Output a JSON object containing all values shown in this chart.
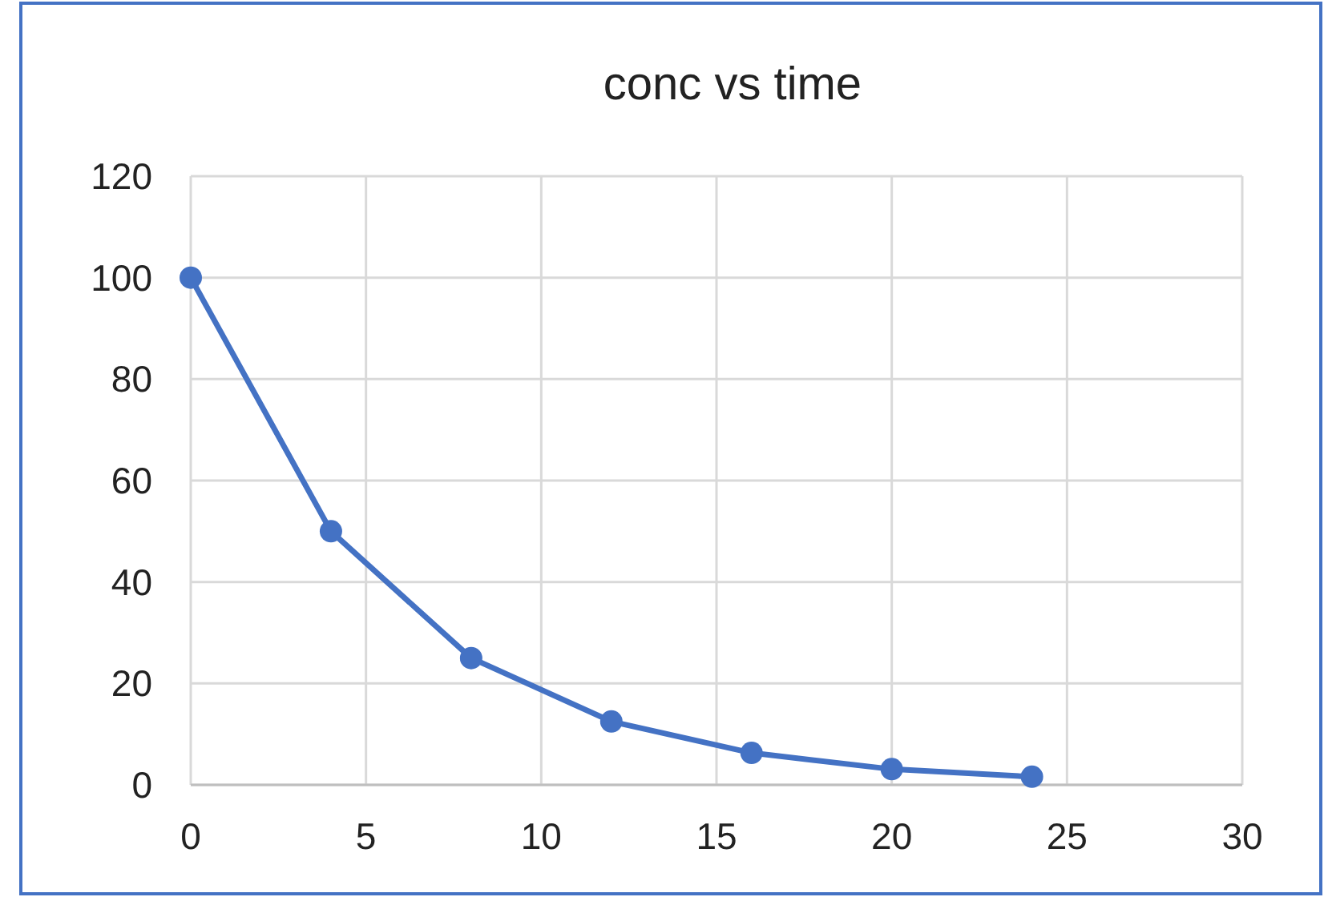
{
  "chart_data": {
    "type": "line",
    "title": "conc vs time",
    "x": [
      0,
      4,
      8,
      12,
      16,
      20,
      24
    ],
    "series": [
      {
        "color": "#4472c4",
        "values": [
          100,
          50,
          25,
          12.5,
          6.3,
          3.1,
          1.6
        ]
      }
    ],
    "xlim": [
      0,
      30
    ],
    "xticks": [
      0,
      5,
      10,
      15,
      20,
      25,
      30
    ],
    "ylim": [
      0,
      120
    ],
    "yticks": [
      0,
      20,
      40,
      60,
      80,
      100,
      120
    ],
    "grid": true,
    "marker": "circle",
    "line_style": "solid"
  }
}
